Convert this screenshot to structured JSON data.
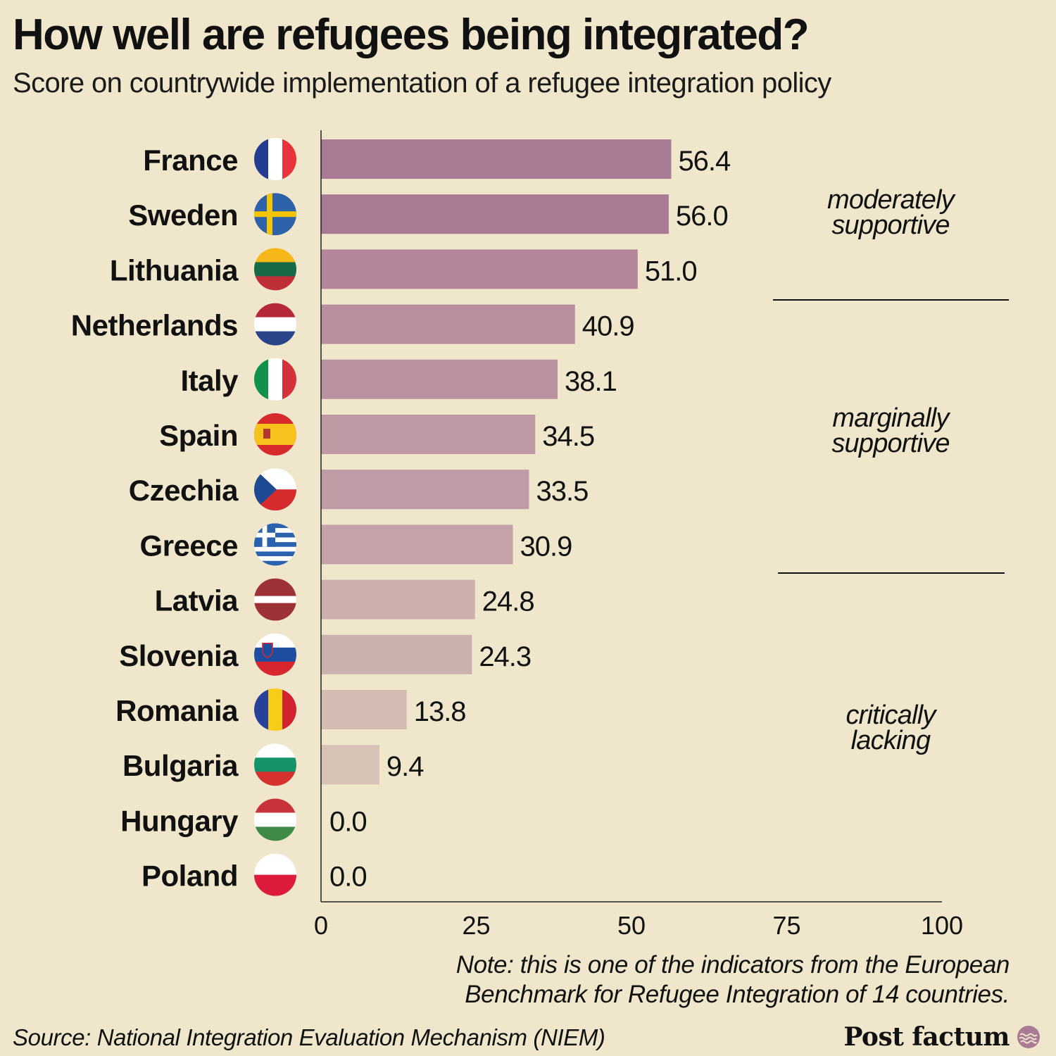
{
  "title": "How well are refugees being integrated?",
  "subtitle": "Score on countrywide implementation of a refugee integration policy",
  "chart_data": {
    "type": "bar",
    "orientation": "horizontal",
    "categories": [
      "France",
      "Sweden",
      "Lithuania",
      "Netherlands",
      "Italy",
      "Spain",
      "Czechia",
      "Greece",
      "Latvia",
      "Slovenia",
      "Romania",
      "Bulgaria",
      "Hungary",
      "Poland"
    ],
    "values": [
      56.4,
      56.0,
      51.0,
      40.9,
      38.1,
      34.5,
      33.5,
      30.9,
      24.8,
      24.3,
      13.8,
      9.4,
      0.0,
      0.0
    ],
    "value_labels": [
      "56.4",
      "56.0",
      "51.0",
      "40.9",
      "38.1",
      "34.5",
      "33.5",
      "30.9",
      "24.8",
      "24.3",
      "13.8",
      "9.4",
      "0.0",
      "0.0"
    ],
    "flags": [
      "france-flag",
      "sweden-flag",
      "lithuania-flag",
      "netherlands-flag",
      "italy-flag",
      "spain-flag",
      "czechia-flag",
      "greece-flag",
      "latvia-flag",
      "slovenia-flag",
      "romania-flag",
      "bulgaria-flag",
      "hungary-flag",
      "poland-flag"
    ],
    "bar_colors": [
      "#a87a94",
      "#a87a94",
      "#b38699",
      "#b98f9f",
      "#ba91a0",
      "#be99a4",
      "#bf9ba6",
      "#c3a2a9",
      "#cbb0ae",
      "#cbb1ae",
      "#d4bcb3",
      "#d7c2b6",
      "#d7c2b6",
      "#d7c2b6"
    ],
    "xlim": [
      0,
      100
    ],
    "x_ticks": [
      0,
      25,
      50,
      75,
      100
    ],
    "x_tick_labels": [
      "0",
      "25",
      "50",
      "75",
      "100"
    ],
    "xlabel": "",
    "ylabel": "",
    "grid": false,
    "groups": [
      {
        "label": "moderately supportive",
        "categories": [
          "France",
          "Sweden",
          "Lithuania"
        ]
      },
      {
        "label": "marginally supportive",
        "categories": [
          "Netherlands",
          "Italy",
          "Spain",
          "Czechia",
          "Greece"
        ]
      },
      {
        "label": "critically lacking",
        "categories": [
          "Latvia",
          "Slovenia",
          "Romania",
          "Bulgaria",
          "Hungary",
          "Poland"
        ]
      }
    ]
  },
  "note": "Note: this is one of the indicators from the European Benchmark for Refugee Integration of 14 countries.",
  "source": "Source: National Integration Evaluation Mechanism (NIEM)",
  "brand": {
    "name": "Post factum",
    "logo_icon": "wave-circle-icon",
    "logo_color": "#a87a94"
  },
  "colors": {
    "background": "#efe6cb",
    "axis": "#222222",
    "text": "#111111"
  }
}
